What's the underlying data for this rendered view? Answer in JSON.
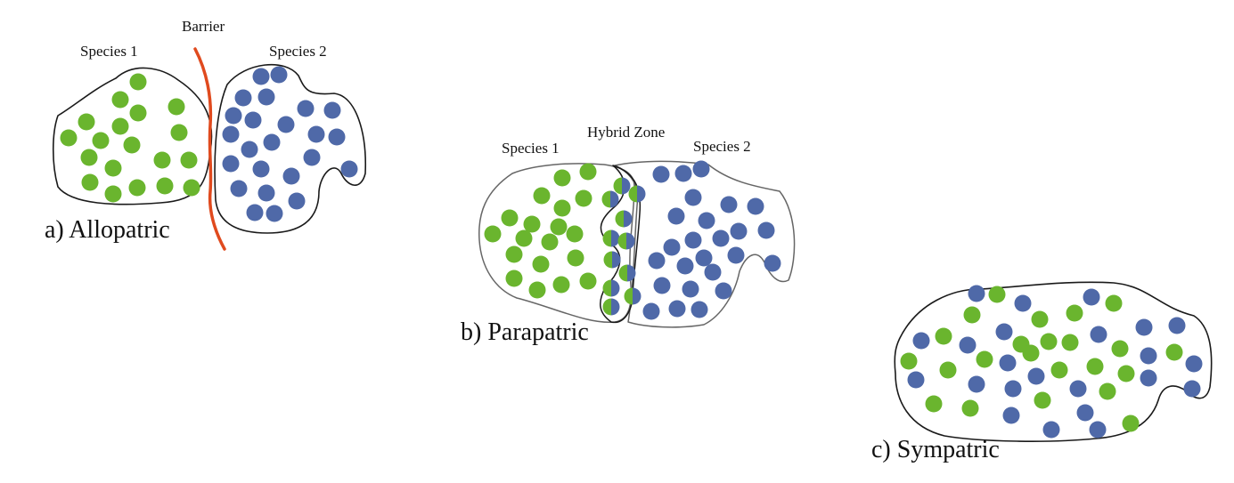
{
  "colors": {
    "green": "#6ab52e",
    "blue": "#4f69a8",
    "barrier": "#e04a1e",
    "outline": "#1a1a1a",
    "panel_b_region_outline": "#666666"
  },
  "panels": {
    "allopatric": {
      "caption": "a) Allopatric",
      "species1_label": "Species 1",
      "species2_label": "Species 2",
      "barrier_label": "Barrier"
    },
    "parapatric": {
      "caption": "b) Parapatric",
      "species1_label": "Species 1",
      "species2_label": "Species 2",
      "hybrid_label": "Hybrid Zone"
    },
    "sympatric": {
      "caption": "c) Sympatric"
    }
  }
}
